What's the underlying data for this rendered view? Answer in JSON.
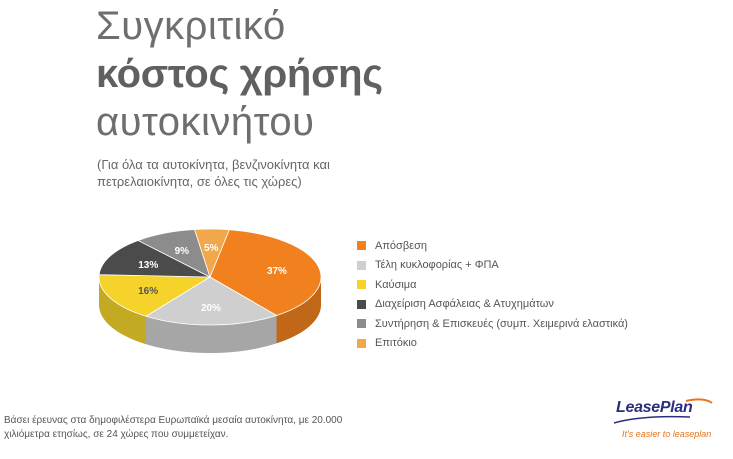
{
  "title": {
    "line1": "Συγκριτικό",
    "line2": "κόστος χρήσης",
    "line3": "αυτοκινήτου"
  },
  "subtitle": "(Για όλα τα αυτοκίνητα, βενζινοκίνητα και πετρελαιοκίνητα, σε όλες τις χώρες)",
  "chart_data": {
    "type": "pie",
    "title": "",
    "series": [
      {
        "label": "Απόσβεση",
        "value": 37,
        "color": "#f0811e"
      },
      {
        "label": "Τέλη κυκλοφορίας + ΦΠΑ",
        "value": 20,
        "color": "#cfcfcf"
      },
      {
        "label": "Καύσιμα",
        "value": 16,
        "color": "#f5d32a"
      },
      {
        "label": "Διαχείριση Ασφάλειας & Ατυχημάτων",
        "value": 13,
        "color": "#4b4b4b"
      },
      {
        "label": "Συντήρηση & Επισκευές (συμπ. Χειμερινά ελαστικά)",
        "value": 9,
        "color": "#8c8c8c"
      },
      {
        "label": "Επιτόκιο",
        "value": 5,
        "color": "#f0a84a"
      }
    ],
    "data_labels": [
      "37%",
      "20%",
      "16%",
      "13%",
      "9%",
      "5%"
    ],
    "legend_placement": "right",
    "style": "3d"
  },
  "footnote": "Βάσει έρευνας στα δημοφιλέστερα Ευρωπαϊκά μεσαία αυτοκίνητα, με 20.000 χιλιόμετρα ετησίως, σε 24 χώρες που συμμετείχαν.",
  "brand": {
    "logo": "LeasePlan",
    "tagline": "It's easier to leaseplan"
  }
}
